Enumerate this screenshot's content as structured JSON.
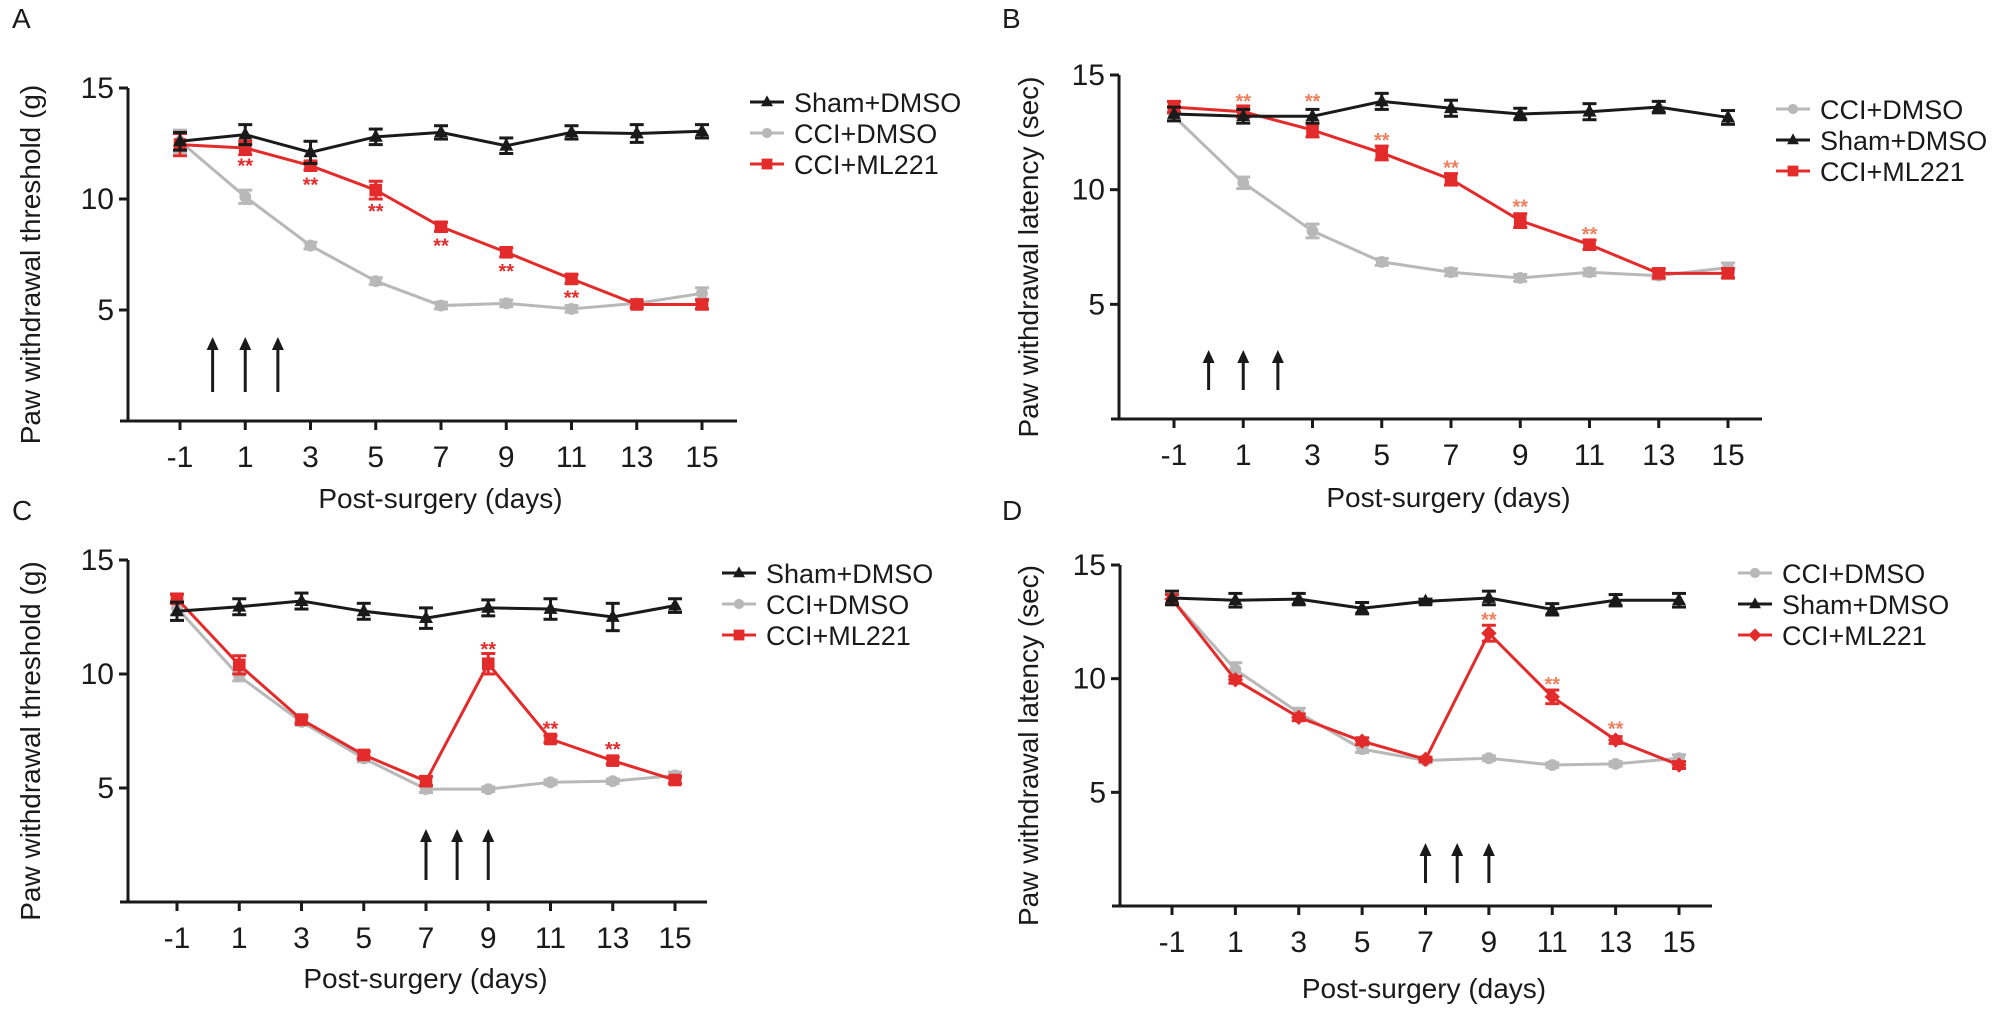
{
  "colors": {
    "sham": "#1a1a1a",
    "cci_dmso": "#b8b8b8",
    "ml221": "#e32b2b",
    "star_a": "#e32b2b",
    "star_b": "#f0805e"
  },
  "chart_data": [
    {
      "panel": "A",
      "type": "line",
      "xlabel": "Post-surgery (days)",
      "ylabel": "Paw withdrawal threshold (g)",
      "x": [
        -1,
        1,
        3,
        5,
        7,
        9,
        11,
        13,
        15
      ],
      "xticks": [
        "-1",
        "1",
        "3",
        "5",
        "7",
        "9",
        "11",
        "13",
        "15"
      ],
      "yticks": [
        5,
        10,
        15
      ],
      "ylim": [
        0,
        15
      ],
      "legend": [
        "Sham+DMSO",
        "CCI+DMSO",
        "CCI+ML221"
      ],
      "legend_position": "top-right",
      "series": [
        {
          "name": "Sham+DMSO",
          "key": "sham",
          "marker": "triangle",
          "values": [
            12.6,
            12.9,
            12.1,
            12.8,
            13.0,
            12.4,
            13.0,
            12.95,
            13.05
          ],
          "err": [
            0.4,
            0.45,
            0.5,
            0.35,
            0.3,
            0.35,
            0.3,
            0.4,
            0.3
          ]
        },
        {
          "name": "CCI+DMSO",
          "key": "cci_dmso",
          "marker": "circle",
          "values": [
            12.6,
            10.1,
            7.9,
            6.3,
            5.2,
            5.3,
            5.05,
            5.3,
            5.75
          ],
          "err": [
            0.5,
            0.3,
            0.15,
            0.15,
            0.15,
            0.15,
            0.15,
            0.15,
            0.25
          ]
        },
        {
          "name": "CCI+ML221",
          "key": "ml221",
          "marker": "square",
          "values": [
            12.45,
            12.3,
            11.5,
            10.4,
            8.75,
            7.6,
            6.4,
            5.25,
            5.25
          ],
          "err": [
            0.5,
            0.3,
            0.2,
            0.4,
            0.2,
            0.2,
            0.2,
            0.15,
            0.2
          ]
        }
      ],
      "annotations": [
        {
          "x": 1,
          "y": 11.55,
          "text": "**"
        },
        {
          "x": 3,
          "y": 10.7,
          "text": "**"
        },
        {
          "x": 5,
          "y": 9.5,
          "text": "**"
        },
        {
          "x": 7,
          "y": 7.95,
          "text": "**"
        },
        {
          "x": 9,
          "y": 6.8,
          "text": "**"
        },
        {
          "x": 11,
          "y": 5.6,
          "text": "**"
        }
      ],
      "arrows_at_days": [
        0,
        1,
        2
      ]
    },
    {
      "panel": "B",
      "type": "line",
      "xlabel": "Post-surgery (days)",
      "ylabel": "Paw withdrawal latency (sec)",
      "x": [
        -1,
        1,
        3,
        5,
        7,
        9,
        11,
        13,
        15
      ],
      "xticks": [
        "-1",
        "1",
        "3",
        "5",
        "7",
        "9",
        "11",
        "13",
        "15"
      ],
      "yticks": [
        5,
        10,
        15
      ],
      "ylim": [
        0,
        15
      ],
      "legend": [
        "CCI+DMSO",
        "Sham+DMSO",
        "CCI+ML221"
      ],
      "legend_position": "top-right",
      "series": [
        {
          "name": "CCI+DMSO",
          "key": "cci_dmso",
          "marker": "circle",
          "values": [
            13.2,
            10.3,
            8.2,
            6.85,
            6.4,
            6.15,
            6.4,
            6.25,
            6.6
          ],
          "err": [
            0.2,
            0.25,
            0.3,
            0.15,
            0.15,
            0.15,
            0.15,
            0.15,
            0.2
          ]
        },
        {
          "name": "Sham+DMSO",
          "key": "sham",
          "marker": "triangle",
          "values": [
            13.3,
            13.2,
            13.2,
            13.85,
            13.55,
            13.3,
            13.4,
            13.6,
            13.15
          ],
          "err": [
            0.3,
            0.3,
            0.3,
            0.35,
            0.35,
            0.25,
            0.35,
            0.25,
            0.3
          ]
        },
        {
          "name": "CCI+ML221",
          "key": "ml221",
          "marker": "square",
          "values": [
            13.6,
            13.4,
            12.6,
            11.6,
            10.45,
            8.65,
            7.6,
            6.35,
            6.35
          ],
          "err": [
            0.25,
            0.25,
            0.3,
            0.3,
            0.25,
            0.3,
            0.2,
            0.2,
            0.2
          ]
        }
      ],
      "annotations": [
        {
          "x": 1,
          "y": 13.9,
          "text": "**"
        },
        {
          "x": 3,
          "y": 13.9,
          "text": "**"
        },
        {
          "x": 5,
          "y": 12.2,
          "text": "**"
        },
        {
          "x": 7,
          "y": 11.0,
          "text": "**"
        },
        {
          "x": 9,
          "y": 9.3,
          "text": "**"
        },
        {
          "x": 11,
          "y": 8.1,
          "text": "**"
        }
      ],
      "arrows_at_days": [
        0,
        1,
        2
      ]
    },
    {
      "panel": "C",
      "type": "line",
      "xlabel": "Post-surgery (days)",
      "ylabel": "Paw withdrawal threshold (g)",
      "x": [
        -1,
        1,
        3,
        5,
        7,
        9,
        11,
        13,
        15
      ],
      "xticks": [
        "-1",
        "1",
        "3",
        "5",
        "7",
        "9",
        "11",
        "13",
        "15"
      ],
      "yticks": [
        5,
        10,
        15
      ],
      "ylim": [
        0,
        15
      ],
      "legend": [
        "Sham+DMSO",
        "CCI+DMSO",
        "CCI+ML221"
      ],
      "legend_position": "top-right",
      "series": [
        {
          "name": "Sham+DMSO",
          "key": "sham",
          "marker": "triangle",
          "values": [
            12.75,
            12.95,
            13.2,
            12.75,
            12.45,
            12.9,
            12.85,
            12.5,
            13.0
          ],
          "err": [
            0.4,
            0.35,
            0.35,
            0.35,
            0.45,
            0.35,
            0.45,
            0.6,
            0.3
          ]
        },
        {
          "name": "CCI+DMSO",
          "key": "cci_dmso",
          "marker": "circle",
          "values": [
            12.9,
            9.9,
            7.9,
            6.3,
            4.95,
            4.95,
            5.25,
            5.3,
            5.55
          ],
          "err": [
            0.3,
            0.2,
            0.15,
            0.15,
            0.15,
            0.1,
            0.1,
            0.1,
            0.15
          ]
        },
        {
          "name": "CCI+ML221",
          "key": "ml221",
          "marker": "square",
          "values": [
            13.3,
            10.4,
            8.0,
            6.45,
            5.3,
            10.45,
            7.15,
            6.2,
            5.35
          ],
          "err": [
            0.2,
            0.4,
            0.15,
            0.15,
            0.2,
            0.45,
            0.15,
            0.15,
            0.15
          ]
        }
      ],
      "annotations": [
        {
          "x": 9,
          "y": 11.15,
          "text": "**"
        },
        {
          "x": 11,
          "y": 7.65,
          "text": "**"
        },
        {
          "x": 13,
          "y": 6.75,
          "text": "**"
        }
      ],
      "arrows_at_days": [
        7,
        8,
        9
      ]
    },
    {
      "panel": "D",
      "type": "line",
      "xlabel": "Post-surgery (days)",
      "ylabel": "Paw withdrawal latency (sec)",
      "x": [
        -1,
        1,
        3,
        5,
        7,
        9,
        11,
        13,
        15
      ],
      "xticks": [
        "-1",
        "1",
        "3",
        "5",
        "7",
        "9",
        "11",
        "13",
        "15"
      ],
      "yticks": [
        5,
        10,
        15
      ],
      "ylim": [
        0,
        15
      ],
      "legend": [
        "CCI+DMSO",
        "Sham+DMSO",
        "CCI+ML221"
      ],
      "legend_position": "top-right",
      "series": [
        {
          "name": "CCI+DMSO",
          "key": "cci_dmso",
          "marker": "circle",
          "values": [
            13.5,
            10.4,
            8.5,
            6.9,
            6.4,
            6.5,
            6.2,
            6.25,
            6.5
          ],
          "err": [
            0.2,
            0.3,
            0.2,
            0.15,
            0.1,
            0.1,
            0.1,
            0.1,
            0.15
          ]
        },
        {
          "name": "Sham+DMSO",
          "key": "sham",
          "marker": "triangle",
          "values": [
            13.55,
            13.45,
            13.5,
            13.1,
            13.4,
            13.55,
            13.05,
            13.45,
            13.45
          ],
          "err": [
            0.3,
            0.3,
            0.25,
            0.25,
            0.1,
            0.3,
            0.25,
            0.25,
            0.3
          ]
        },
        {
          "name": "CCI+ML221",
          "key": "ml221",
          "marker": "diamond",
          "values": [
            13.5,
            9.95,
            8.3,
            7.25,
            6.45,
            12.0,
            9.2,
            7.3,
            6.2
          ],
          "err": [
            0.2,
            0.15,
            0.15,
            0.15,
            0.1,
            0.35,
            0.3,
            0.15,
            0.15
          ]
        }
      ],
      "annotations": [
        {
          "x": 9,
          "y": 12.65,
          "text": "**"
        },
        {
          "x": 11,
          "y": 9.8,
          "text": "**"
        },
        {
          "x": 13,
          "y": 7.85,
          "text": "**"
        }
      ],
      "arrows_at_days": [
        7,
        8,
        9
      ]
    }
  ]
}
